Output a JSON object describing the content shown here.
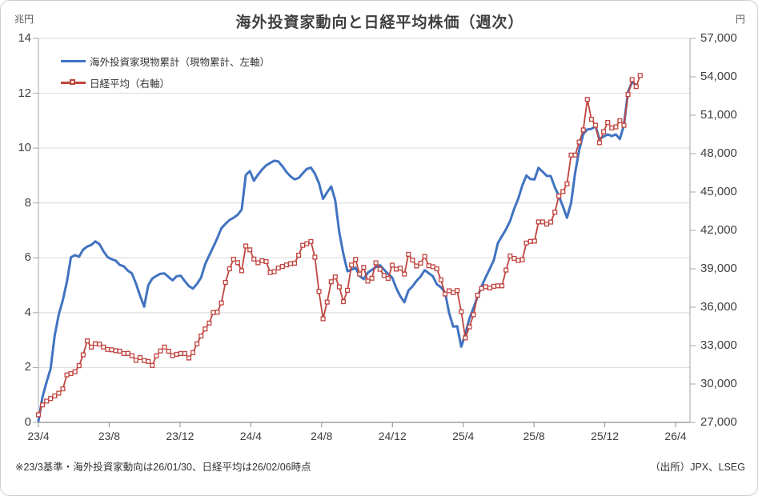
{
  "frame": {
    "title": "海外投資家動向と日経平均株価（週次）"
  },
  "axes": {
    "left_unit": "兆円",
    "right_unit": "円",
    "left_tick_labels": [
      "14",
      "12",
      "10",
      "8",
      "6",
      "4",
      "2",
      "0"
    ],
    "right_tick_labels": [
      "57,000",
      "54,000",
      "51,000",
      "48,000",
      "45,000",
      "42,000",
      "39,000",
      "36,000",
      "33,000",
      "30,000",
      "27,000"
    ],
    "x_tick_labels": [
      "23/4",
      "23/8",
      "23/12",
      "24/4",
      "24/8",
      "24/12",
      "25/4",
      "25/8",
      "25/12",
      "26/4"
    ]
  },
  "legend": {
    "items": [
      {
        "label": "海外投資家現物累計（現物累計、左軸）",
        "color": "#4173c1",
        "marker": "line"
      },
      {
        "label": "日経平均（右軸）",
        "color": "#c0443f",
        "marker": "line-with-open-square"
      }
    ]
  },
  "footnote": {
    "left": "※23/3基準・海外投資家動向は26/01/30、日経平均は26/02/06時点",
    "right": "（出所）JPX、LSEG"
  },
  "colors": {
    "blue_series": "#4173c1",
    "red_series": "#c0443f",
    "gridline": "#d9d9d9",
    "axis_line": "#a6a6a6",
    "tick_text": "#404040",
    "title_text": "#3f3f3f"
  },
  "chart_data": {
    "type": "line",
    "title": "海外投資家動向と日経平均株価（週次）",
    "frequency": "weekly",
    "x_tick_labels": [
      "23/4",
      "23/8",
      "23/12",
      "24/4",
      "24/8",
      "24/12",
      "25/4",
      "25/8",
      "25/12",
      "26/4"
    ],
    "left_axis": {
      "unit": "兆円",
      "min": 0,
      "max": 14,
      "step": 2
    },
    "right_axis": {
      "unit": "円",
      "min": 27000,
      "max": 57000,
      "step": 3000
    },
    "grid": "horizontal",
    "legend_position": "top-left-inside",
    "series": [
      {
        "name": "海外投資家現物累計（現物累計、左軸）",
        "axis": "left",
        "color": "#4173c1",
        "marker": "none",
        "start_x_label": "23/4",
        "end_note": "26/01/30時点",
        "values": [
          0.05,
          0.93,
          1.47,
          1.95,
          3.16,
          3.93,
          4.46,
          5.13,
          6.02,
          6.1,
          6.04,
          6.3,
          6.41,
          6.47,
          6.6,
          6.5,
          6.24,
          6.03,
          5.95,
          5.9,
          5.74,
          5.69,
          5.53,
          5.43,
          5.06,
          4.62,
          4.22,
          5.0,
          5.24,
          5.34,
          5.42,
          5.43,
          5.3,
          5.18,
          5.33,
          5.35,
          5.15,
          4.97,
          4.88,
          5.05,
          5.28,
          5.77,
          6.09,
          6.39,
          6.72,
          7.08,
          7.24,
          7.38,
          7.46,
          7.57,
          7.76,
          9.02,
          9.16,
          8.81,
          9.03,
          9.22,
          9.37,
          9.46,
          9.54,
          9.51,
          9.34,
          9.13,
          8.97,
          8.86,
          8.91,
          9.08,
          9.24,
          9.29,
          9.07,
          8.72,
          8.15,
          8.39,
          8.6,
          8.1,
          6.93,
          6.14,
          5.51,
          5.57,
          5.64,
          5.34,
          5.22,
          5.46,
          5.56,
          5.66,
          5.73,
          5.57,
          5.41,
          5.28,
          4.9,
          4.6,
          4.38,
          4.81,
          4.96,
          5.16,
          5.32,
          5.55,
          5.44,
          5.33,
          5.03,
          4.93,
          4.74,
          3.99,
          3.49,
          3.51,
          2.76,
          3.23,
          3.79,
          4.18,
          4.58,
          4.97,
          5.29,
          5.6,
          5.92,
          6.54,
          6.79,
          7.04,
          7.34,
          7.79,
          8.15,
          8.63,
          9.0,
          8.87,
          8.86,
          9.28,
          9.14,
          8.99,
          8.98,
          8.57,
          8.26,
          7.87,
          7.46,
          8.0,
          9.11,
          9.93,
          10.51,
          10.68,
          10.7,
          10.8,
          10.32,
          10.42,
          10.5,
          10.44,
          10.5,
          10.33,
          10.84,
          12.05,
          12.41,
          12.3
        ]
      },
      {
        "name": "日経平均（右軸）",
        "axis": "right",
        "color": "#c0443f",
        "marker": "open-square",
        "start_x_label": "23/4",
        "end_note": "26/02/06時点",
        "values": [
          27600,
          28370,
          28660,
          28860,
          29070,
          29280,
          29620,
          30710,
          30810,
          30960,
          31430,
          32280,
          33370,
          32880,
          33150,
          33120,
          32890,
          32700,
          32670,
          32600,
          32570,
          32380,
          32390,
          32210,
          31850,
          32060,
          31830,
          31760,
          31450,
          32200,
          32580,
          32890,
          32560,
          32210,
          32320,
          32380,
          32380,
          32030,
          32450,
          33140,
          33750,
          34300,
          34760,
          35580,
          35610,
          36340,
          37940,
          39000,
          39750,
          39480,
          38850,
          40780,
          40480,
          39760,
          39470,
          39630,
          39560,
          38710,
          38780,
          39060,
          39180,
          39300,
          39400,
          39440,
          40060,
          40830,
          40960,
          41130,
          39910,
          37230,
          35100,
          36400,
          37990,
          38360,
          37590,
          36430,
          37320,
          39300,
          39740,
          38590,
          39110,
          38040,
          38260,
          39470,
          38960,
          38480,
          38250,
          39280,
          38970,
          39050,
          38590,
          40130,
          39680,
          39220,
          39440,
          39970,
          39240,
          39160,
          39000,
          38140,
          37030,
          37280,
          37140,
          37300,
          35650,
          33600,
          34460,
          35410,
          36940,
          37470,
          37600,
          37500,
          37630,
          37670,
          37670,
          38900,
          40000,
          39810,
          39650,
          39710,
          41010,
          41140,
          41160,
          42660,
          42660,
          42490,
          42650,
          43420,
          44690,
          45030,
          45640,
          47890,
          47880,
          48900,
          49850,
          52240,
          50680,
          50210,
          48850,
          49710,
          50430,
          50000,
          50090,
          50570,
          50210,
          52620,
          53790,
          53240,
          54100
        ]
      }
    ]
  }
}
